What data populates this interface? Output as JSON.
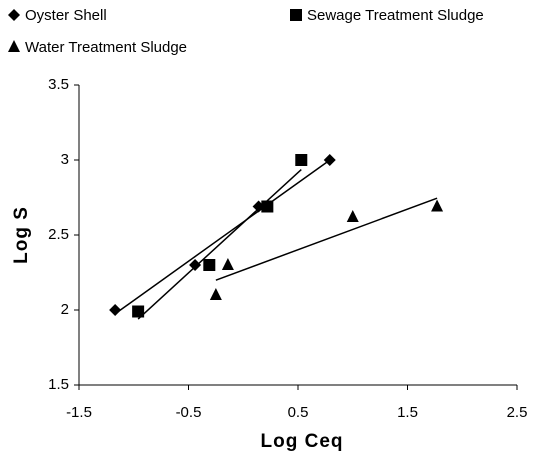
{
  "chart_data": {
    "type": "scatter",
    "xlabel": "Log Ceq",
    "ylabel": "Log S",
    "xlim": [
      -1.5,
      2.5
    ],
    "xticks": [
      -1.5,
      -0.5,
      0.5,
      1.5,
      2.5
    ],
    "ylim": [
      1.5,
      3.5
    ],
    "yticks": [
      1.5,
      2,
      2.5,
      3,
      3.5
    ],
    "trendlines": true,
    "series": [
      {
        "name": "Oyster Shell",
        "marker": "diamond",
        "color": "#000000",
        "x": [
          -1.17,
          -0.44,
          0.14,
          0.79
        ],
        "values": [
          2.0,
          2.3,
          2.69,
          3.0
        ]
      },
      {
        "name": "Sewage Treatment Sludge",
        "marker": "square",
        "color": "#000000",
        "x": [
          -0.96,
          -0.31,
          0.22,
          0.53
        ],
        "values": [
          1.99,
          2.3,
          2.69,
          3.0
        ]
      },
      {
        "name": "Water Treatment Sludge",
        "marker": "triangle",
        "color": "#000000",
        "x": [
          -0.25,
          -0.14,
          1.0,
          1.77
        ],
        "values": [
          2.1,
          2.3,
          2.62,
          2.69
        ]
      }
    ]
  }
}
